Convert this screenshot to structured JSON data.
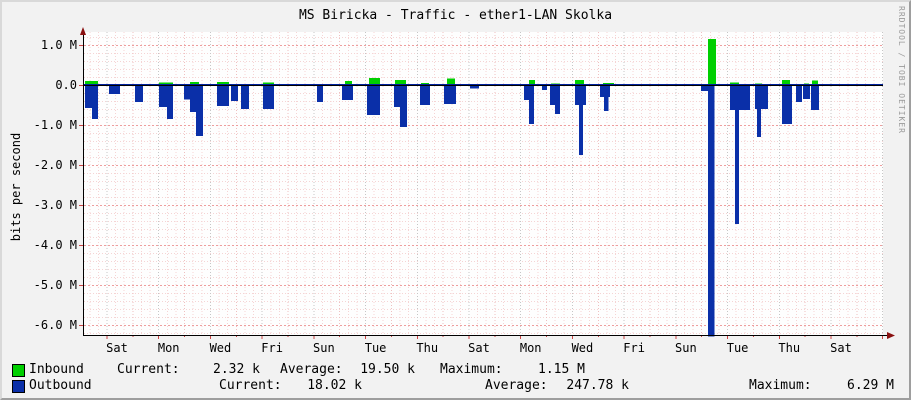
{
  "title": "MS Biricka - Traffic - ether1-LAN Skolka",
  "watermark": "RRDTOOL / TOBI OETIKER",
  "y_axis_label": "bits per second",
  "colors": {
    "inbound": "#00CF00",
    "outbound": "#0A2FA8",
    "zero_line": "#00209A",
    "grid_minor": "#F5D4D4",
    "grid_day": "#EFC0C0",
    "grid_major_h": "#EE9E9E",
    "grid_major_v": "#C6C6C6",
    "axis": "#000000",
    "arrow": "#8A1111",
    "tick": "#CC4444",
    "plot_bg": "#FEFEFE"
  },
  "chart_data": {
    "type": "area",
    "title": "MS Biricka - Traffic - ether1-LAN Skolka",
    "ylabel": "bits per second",
    "value_unit": "Mbit/s",
    "x_unit": "days",
    "ylim": [
      -6.25,
      1.325
    ],
    "grid": true,
    "legend_position": "bottom",
    "y_ticks": [
      {
        "v": 1.0,
        "label": "1.0 M"
      },
      {
        "v": 0.0,
        "label": "0.0"
      },
      {
        "v": -1.0,
        "label": "-1.0 M"
      },
      {
        "v": -2.0,
        "label": "-2.0 M"
      },
      {
        "v": -3.0,
        "label": "-3.0 M"
      },
      {
        "v": -4.0,
        "label": "-4.0 M"
      },
      {
        "v": -5.0,
        "label": "-5.0 M"
      },
      {
        "v": -6.0,
        "label": "-6.0 M"
      }
    ],
    "x_tick_labels": [
      "Sat",
      "Mon",
      "Wed",
      "Fri",
      "Sun",
      "Tue",
      "Thu",
      "Sat",
      "Mon",
      "Wed",
      "Fri",
      "Sun",
      "Tue",
      "Thu",
      "Sat"
    ],
    "series": [
      {
        "name": "Inbound",
        "color": "#00CF00",
        "direction": "up",
        "bars": [
          [
            0.08,
            0.58,
            0.1
          ],
          [
            2.94,
            3.48,
            0.06
          ],
          [
            4.14,
            4.49,
            0.08
          ],
          [
            5.18,
            5.65,
            0.08
          ],
          [
            6.96,
            7.39,
            0.06
          ],
          [
            10.13,
            10.4,
            0.1
          ],
          [
            11.06,
            11.48,
            0.17
          ],
          [
            12.07,
            12.49,
            0.12
          ],
          [
            13.07,
            13.38,
            0.05
          ],
          [
            14.08,
            14.38,
            0.16
          ],
          [
            17.25,
            17.48,
            0.13
          ],
          [
            18.1,
            18.45,
            0.04
          ],
          [
            19.02,
            19.37,
            0.12
          ],
          [
            20.11,
            20.53,
            0.05
          ],
          [
            24.17,
            24.49,
            1.15
          ],
          [
            25.02,
            25.37,
            0.06
          ],
          [
            25.99,
            26.26,
            0.04
          ],
          [
            27.03,
            27.34,
            0.13
          ],
          [
            27.88,
            28.07,
            0.04
          ],
          [
            28.19,
            28.42,
            0.11
          ]
        ]
      },
      {
        "name": "Outbound",
        "color": "#0A2FA8",
        "direction": "down",
        "bars": [
          [
            0.08,
            0.35,
            -0.58
          ],
          [
            0.35,
            0.58,
            -0.85
          ],
          [
            1.01,
            1.43,
            -0.22
          ],
          [
            2.01,
            2.32,
            -0.42
          ],
          [
            2.94,
            3.25,
            -0.55
          ],
          [
            3.25,
            3.48,
            -0.85
          ],
          [
            3.91,
            4.14,
            -0.36
          ],
          [
            4.14,
            4.37,
            -0.67
          ],
          [
            4.37,
            4.64,
            -1.27
          ],
          [
            5.18,
            5.65,
            -0.52
          ],
          [
            5.72,
            5.99,
            -0.4
          ],
          [
            6.11,
            6.42,
            -0.6
          ],
          [
            6.96,
            7.39,
            -0.6
          ],
          [
            9.05,
            9.28,
            -0.42
          ],
          [
            10.02,
            10.44,
            -0.38
          ],
          [
            10.98,
            11.48,
            -0.75
          ],
          [
            12.03,
            12.26,
            -0.55
          ],
          [
            12.26,
            12.53,
            -1.05
          ],
          [
            13.03,
            13.42,
            -0.5
          ],
          [
            13.96,
            14.42,
            -0.47
          ],
          [
            14.96,
            15.31,
            -0.09
          ],
          [
            17.05,
            17.25,
            -0.38
          ],
          [
            17.25,
            17.44,
            -0.97
          ],
          [
            17.75,
            17.94,
            -0.12
          ],
          [
            18.06,
            18.25,
            -0.5
          ],
          [
            18.25,
            18.45,
            -0.73
          ],
          [
            19.02,
            19.45,
            -0.5
          ],
          [
            19.18,
            19.33,
            -1.75
          ],
          [
            20.0,
            20.38,
            -0.3
          ],
          [
            20.15,
            20.33,
            -0.65
          ],
          [
            23.9,
            24.17,
            -0.15
          ],
          [
            24.17,
            24.42,
            -6.29
          ],
          [
            25.02,
            25.79,
            -0.63
          ],
          [
            25.21,
            25.37,
            -3.47
          ],
          [
            25.99,
            26.49,
            -0.6
          ],
          [
            26.06,
            26.22,
            -1.3
          ],
          [
            27.03,
            27.42,
            -0.97
          ],
          [
            27.57,
            27.81,
            -0.42
          ],
          [
            27.84,
            28.11,
            -0.35
          ],
          [
            28.15,
            28.46,
            -0.63
          ]
        ]
      }
    ]
  },
  "legend": {
    "rows": [
      {
        "label": "Inbound",
        "color": "#00CF00",
        "stats": [
          {
            "label": "Current:",
            "value": "2.32 k"
          },
          {
            "label": "Average:",
            "value": "19.50 k"
          },
          {
            "label": "Maximum:",
            "value": "1.15 M"
          }
        ]
      },
      {
        "label": "Outbound",
        "color": "#0A2FA8",
        "stats": [
          {
            "label": "Current:",
            "value": "18.02 k"
          },
          {
            "label": "Average:",
            "value": "247.78 k"
          },
          {
            "label": "Maximum:",
            "value": "6.29 M"
          }
        ]
      }
    ]
  }
}
